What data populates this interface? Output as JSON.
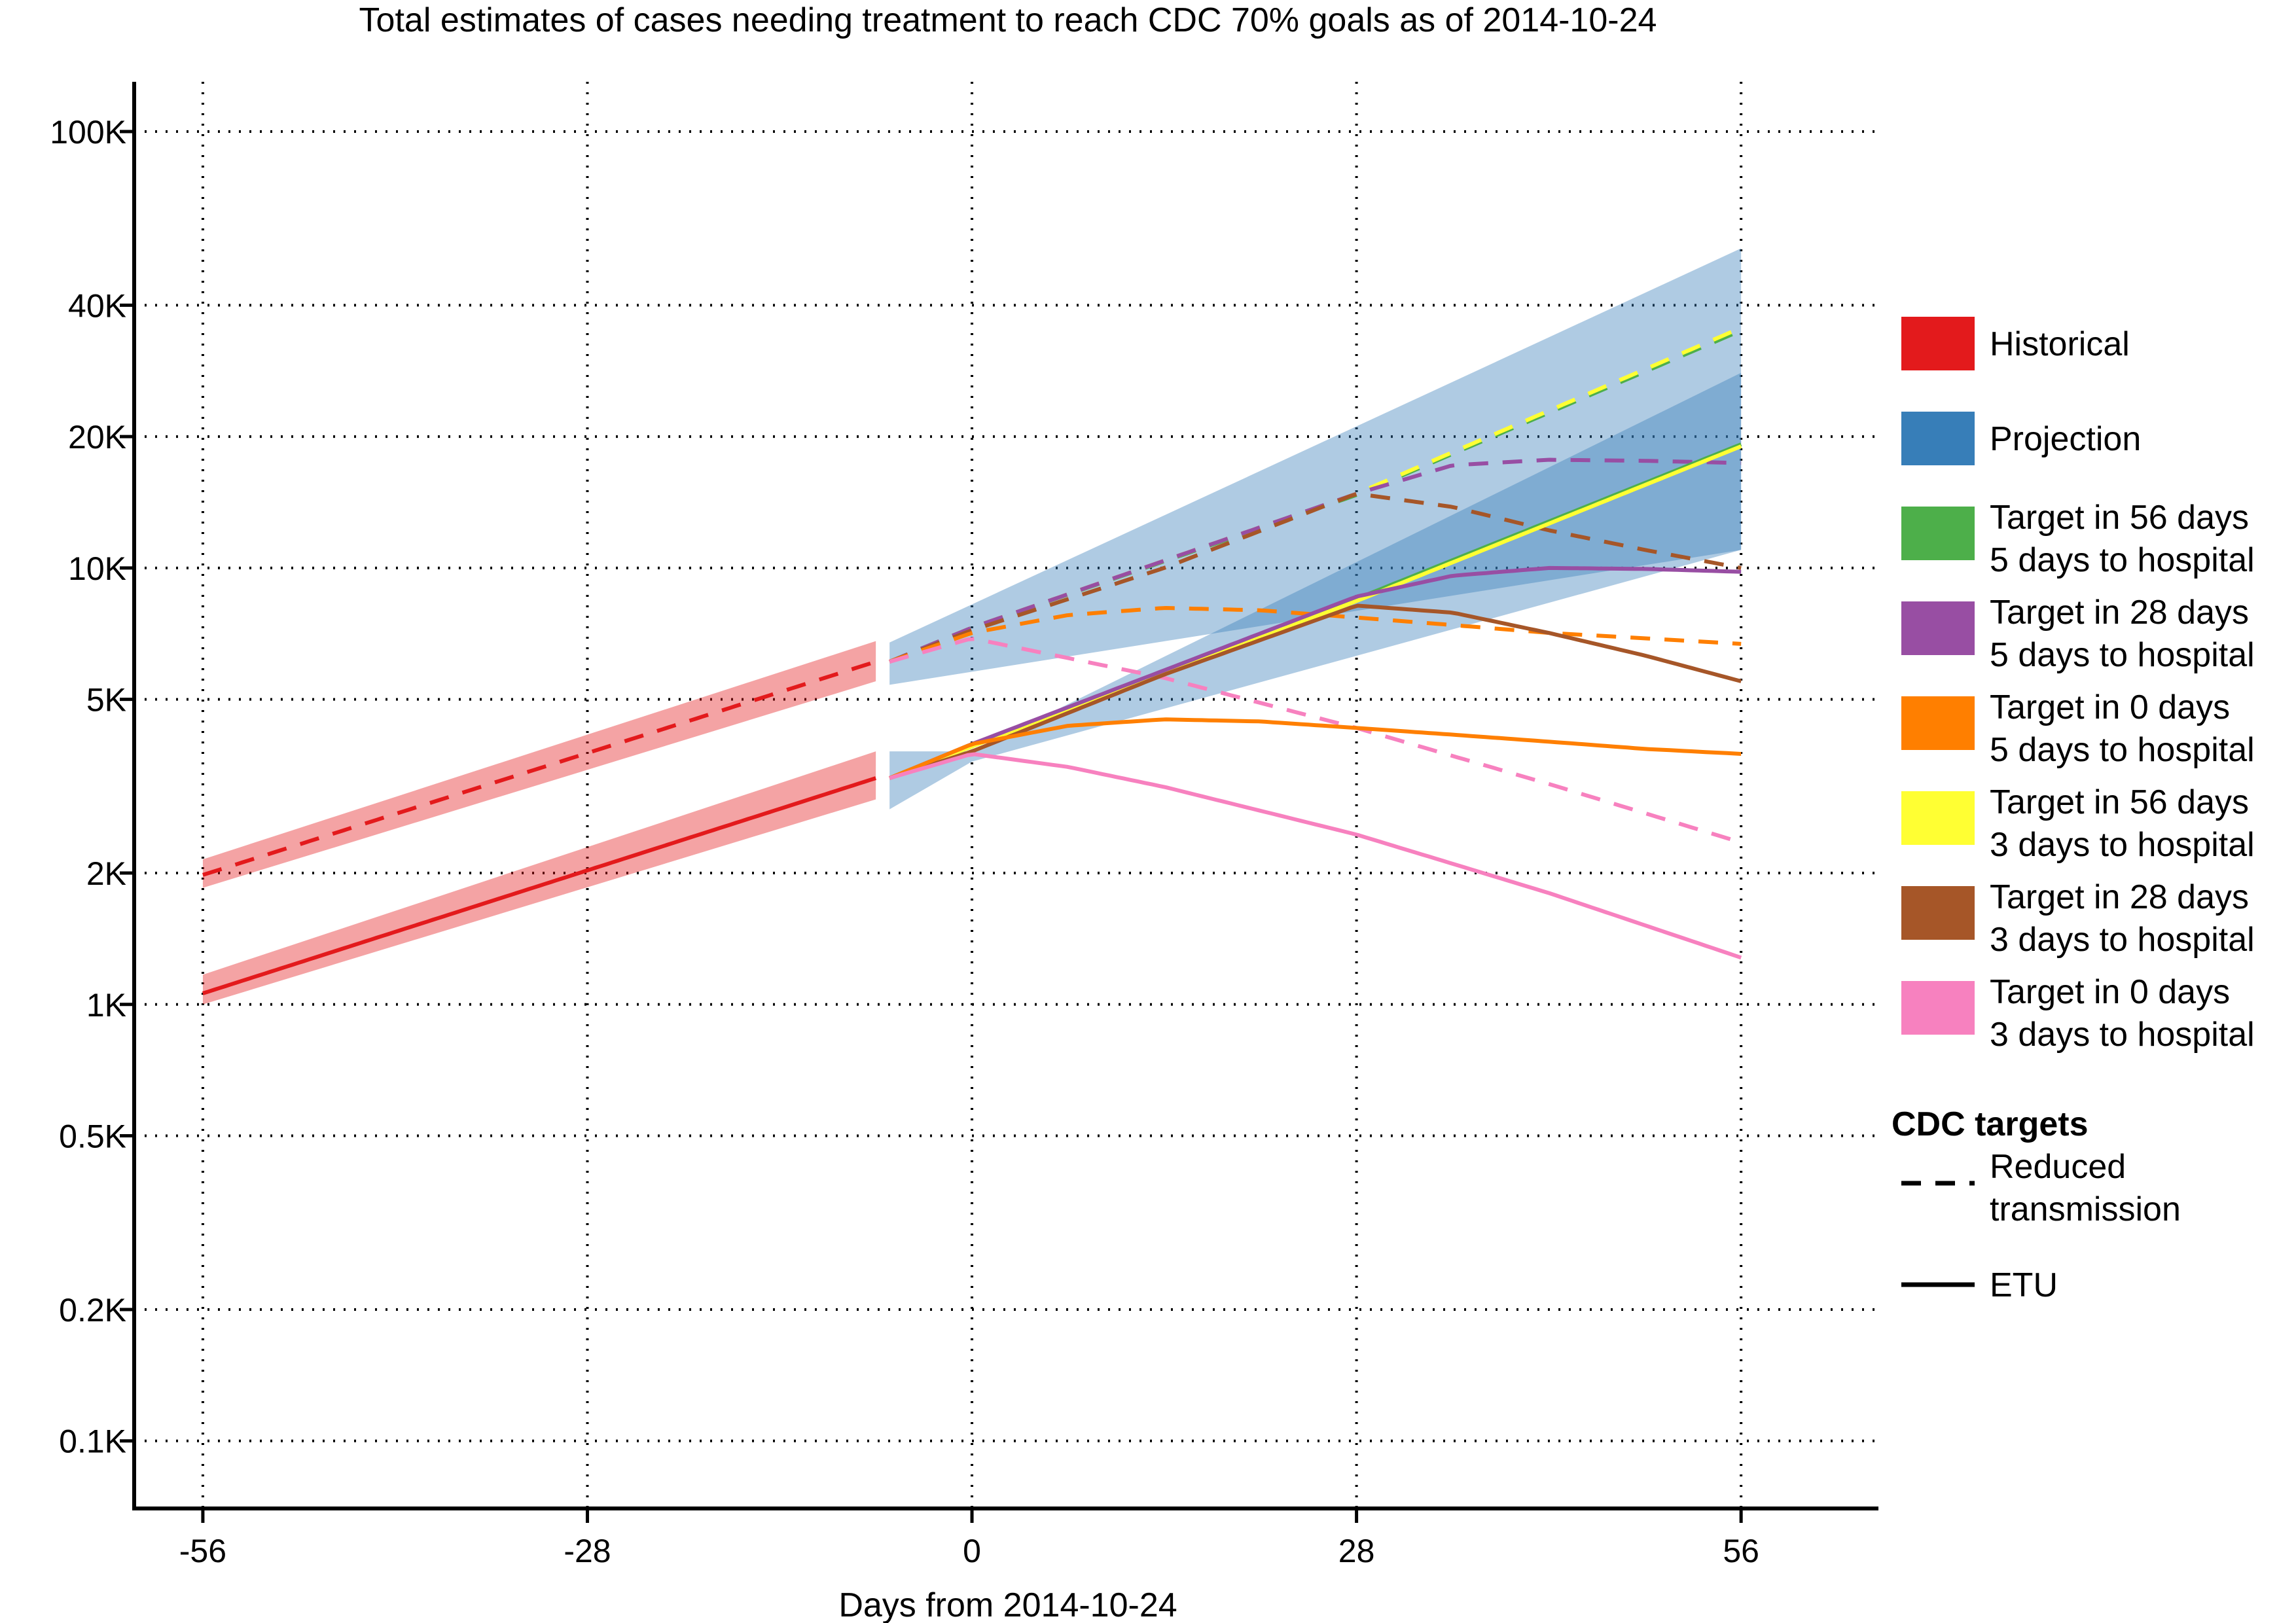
{
  "chart_data": {
    "type": "line",
    "title": "Total estimates of cases needing treatment to reach CDC 70% goals as of 2014-10-24",
    "xlabel": "Days from 2014-10-24",
    "ylabel": "",
    "xlim": [
      -61,
      66
    ],
    "ylim": [
      70,
      130000
    ],
    "yscale": "log",
    "x_ticks": [
      -56,
      -28,
      0,
      28,
      56
    ],
    "x_tick_labels": [
      "-56",
      "-28",
      "0",
      "28",
      "56"
    ],
    "y_ticks": [
      100,
      200,
      500,
      1000,
      2000,
      5000,
      10000,
      20000,
      40000,
      100000
    ],
    "y_tick_labels": [
      "0.1K",
      "0.2K",
      "0.5K",
      "1K",
      "2K",
      "5K",
      "10K",
      "20K",
      "40K",
      "100K"
    ],
    "grid": "dotted",
    "legend_placement": "right",
    "legend_colors": [
      {
        "label": "Historical",
        "color": "#e31a1c"
      },
      {
        "label": "Projection",
        "color": "#377eb8"
      },
      {
        "label": "Target in 56 days\n5 days to hospital",
        "color": "#4daf4a"
      },
      {
        "label": "Target in 28 days\n5 days to hospital",
        "color": "#984ea3"
      },
      {
        "label": "Target in 0 days\n5 days to hospital",
        "color": "#ff7f00"
      },
      {
        "label": "Target in 56 days\n3 days to hospital",
        "color": "#ffff33"
      },
      {
        "label": "Target in 28 days\n3 days to hospital",
        "color": "#a65628"
      },
      {
        "label": "Target in 0 days\n3 days to hospital",
        "color": "#f781bf"
      }
    ],
    "legend_linetype_title": "CDC targets",
    "legend_linetypes": [
      {
        "label": "Reduced\ntransmission",
        "dash": "dashed"
      },
      {
        "label": "ETU",
        "dash": "solid"
      }
    ],
    "bands": [
      {
        "name": "Historical",
        "color": "#e31a1c",
        "x": [
          -56,
          -7
        ],
        "lower": [
          1850,
          5500
        ],
        "upper": [
          2150,
          6800
        ]
      },
      {
        "name": "Historical",
        "color": "#e31a1c",
        "x": [
          -56,
          -7
        ],
        "lower": [
          1000,
          2950
        ],
        "upper": [
          1170,
          3800
        ]
      },
      {
        "name": "Projection",
        "color": "#377eb8",
        "x": [
          -6,
          56
        ],
        "lower": [
          5400,
          11000
        ],
        "upper": [
          6750,
          54000
        ]
      },
      {
        "name": "Projection",
        "color": "#377eb8",
        "x": [
          -6,
          0,
          56
        ],
        "lower": [
          2800,
          3600,
          11000
        ],
        "upper": [
          3800,
          3800,
          28000
        ]
      }
    ],
    "series": [
      {
        "name": "Historical",
        "color": "#e31a1c",
        "dash": "dashed",
        "x": [
          -56,
          -7
        ],
        "y": [
          1980,
          6100
        ]
      },
      {
        "name": "Historical",
        "color": "#e31a1c",
        "dash": "solid",
        "x": [
          -56,
          -7
        ],
        "y": [
          1060,
          3300
        ]
      },
      {
        "name": "Target in 56 days 5 days to hospital",
        "color": "#4daf4a",
        "dash": "dashed",
        "x": [
          -6,
          0,
          28,
          56
        ],
        "y": [
          6100,
          7300,
          14700,
          35000
        ]
      },
      {
        "name": "Target in 56 days 3 days to hospital",
        "color": "#ffff33",
        "dash": "dashed",
        "x": [
          -6,
          0,
          28,
          56
        ],
        "y": [
          6100,
          7300,
          14800,
          35500
        ]
      },
      {
        "name": "Target in 28 days 5 days to hospital",
        "color": "#984ea3",
        "dash": "dashed",
        "x": [
          -6,
          0,
          28,
          35,
          42,
          49,
          56
        ],
        "y": [
          6100,
          7300,
          14800,
          17200,
          17700,
          17600,
          17400
        ]
      },
      {
        "name": "Target in 28 days 3 days to hospital",
        "color": "#a65628",
        "dash": "dashed",
        "x": [
          -6,
          0,
          14,
          28,
          35,
          42,
          49,
          56
        ],
        "y": [
          6100,
          7200,
          10000,
          14800,
          13800,
          12200,
          11000,
          10000
        ]
      },
      {
        "name": "Target in 0 days 5 days to hospital",
        "color": "#ff7f00",
        "dash": "dashed",
        "x": [
          -6,
          0,
          7,
          14,
          21,
          28,
          35,
          42,
          49,
          56
        ],
        "y": [
          6100,
          7100,
          7800,
          8100,
          8000,
          7700,
          7400,
          7100,
          6900,
          6700
        ]
      },
      {
        "name": "Target in 0 days 3 days to hospital",
        "color": "#f781bf",
        "dash": "dashed",
        "x": [
          -6,
          0,
          14,
          28,
          42,
          56
        ],
        "y": [
          6100,
          6900,
          5600,
          4300,
          3200,
          2350
        ]
      },
      {
        "name": "Target in 56 days 5 days to hospital",
        "color": "#4daf4a",
        "dash": "solid",
        "x": [
          -6,
          0,
          28,
          56
        ],
        "y": [
          3300,
          3900,
          8500,
          19200
        ]
      },
      {
        "name": "Target in 56 days 3 days to hospital",
        "color": "#ffff33",
        "dash": "solid",
        "x": [
          -6,
          0,
          28,
          56
        ],
        "y": [
          3300,
          3900,
          8400,
          19000
        ]
      },
      {
        "name": "Target in 28 days 5 days to hospital",
        "color": "#984ea3",
        "dash": "solid",
        "x": [
          -6,
          0,
          28,
          35,
          42,
          49,
          56
        ],
        "y": [
          3300,
          3950,
          8600,
          9600,
          10000,
          9950,
          9800
        ]
      },
      {
        "name": "Target in 28 days 3 days to hospital",
        "color": "#a65628",
        "dash": "solid",
        "x": [
          -6,
          0,
          14,
          28,
          35,
          42,
          49,
          56
        ],
        "y": [
          3300,
          3800,
          5700,
          8200,
          7900,
          7100,
          6300,
          5500
        ]
      },
      {
        "name": "Target in 0 days 5 days to hospital",
        "color": "#ff7f00",
        "dash": "solid",
        "x": [
          -6,
          0,
          7,
          14,
          21,
          28,
          35,
          42,
          49,
          56
        ],
        "y": [
          3300,
          3950,
          4350,
          4500,
          4450,
          4300,
          4150,
          4000,
          3850,
          3750
        ]
      },
      {
        "name": "Target in 0 days 3 days to hospital",
        "color": "#f781bf",
        "dash": "solid",
        "x": [
          -6,
          0,
          7,
          14,
          28,
          42,
          56
        ],
        "y": [
          3300,
          3750,
          3500,
          3150,
          2450,
          1800,
          1280
        ]
      }
    ]
  }
}
